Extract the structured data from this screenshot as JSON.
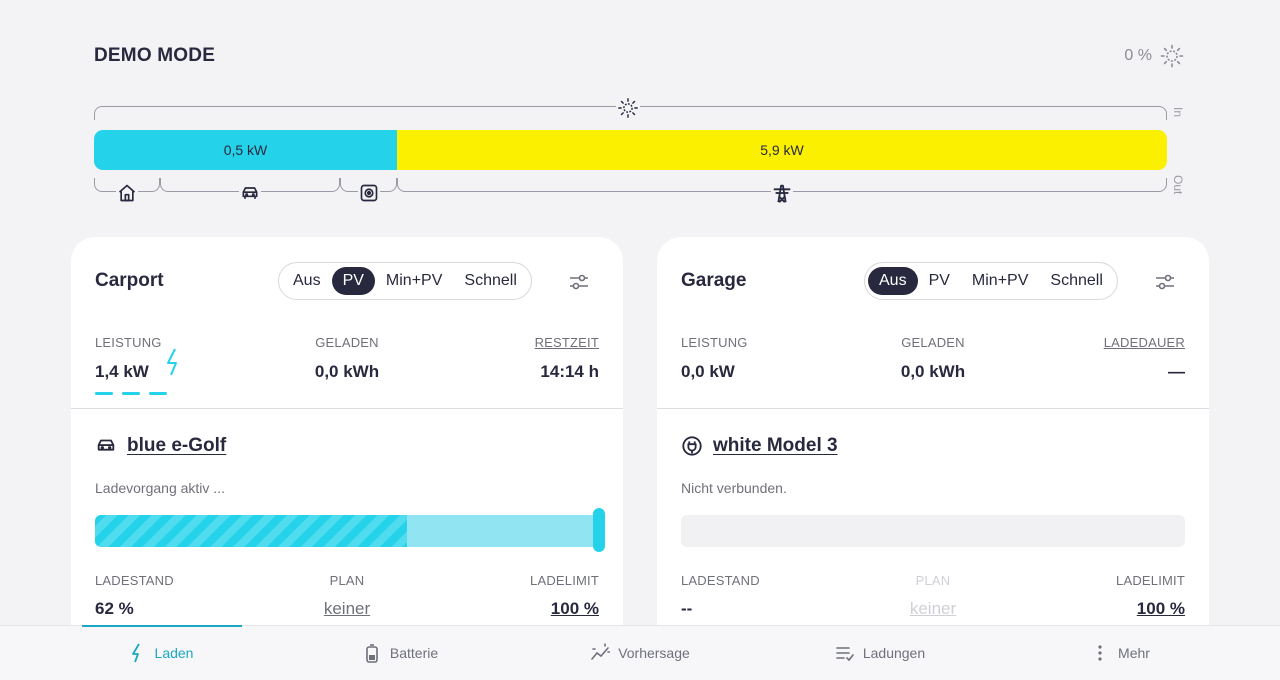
{
  "header": {
    "title": "DEMO MODE",
    "battery_percent": "0 %",
    "icon": "sun-outline-icon"
  },
  "energy_flow": {
    "in_label": "In",
    "out_label": "Out",
    "home_power": "0,5 kW",
    "grid_export": "5,9 kW",
    "colors": {
      "home": "#24d3ea",
      "grid": "#faf000"
    }
  },
  "loadpoints": [
    {
      "name": "Carport",
      "modes": [
        "Aus",
        "PV",
        "Min+PV",
        "Schnell"
      ],
      "active_mode": "PV",
      "stats": [
        {
          "label": "LEISTUNG",
          "value": "1,4 kW"
        },
        {
          "label": "GELADEN",
          "value": "0,0 kWh"
        },
        {
          "label": "RESTZEIT",
          "value": "14:14 h"
        }
      ],
      "vehicle": {
        "name": "blue e-Golf",
        "icon": "car-icon",
        "status": "Ladevorgang aktiv ..."
      },
      "soc_percent": 62,
      "limit_percent": 100,
      "bottom_stats": [
        {
          "label": "LADESTAND",
          "value": "62 %"
        },
        {
          "label": "PLAN",
          "value": "keiner"
        },
        {
          "label": "LADELIMIT",
          "value": "100 %"
        }
      ]
    },
    {
      "name": "Garage",
      "modes": [
        "Aus",
        "PV",
        "Min+PV",
        "Schnell"
      ],
      "active_mode": "Aus",
      "stats": [
        {
          "label": "LEISTUNG",
          "value": "0,0 kW"
        },
        {
          "label": "GELADEN",
          "value": "0,0 kWh"
        },
        {
          "label": "LADEDAUER",
          "value": "—"
        }
      ],
      "vehicle": {
        "name": "white Model 3",
        "icon": "plug-icon",
        "status": "Nicht verbunden."
      },
      "soc_percent": 0,
      "bottom_stats": [
        {
          "label": "LADESTAND",
          "value": "--"
        },
        {
          "label": "PLAN",
          "value": "keiner"
        },
        {
          "label": "LADELIMIT",
          "value": "100 %"
        }
      ]
    }
  ],
  "nav": [
    {
      "label": "Laden",
      "icon": "bolt-icon",
      "active": true
    },
    {
      "label": "Batterie",
      "icon": "battery-icon"
    },
    {
      "label": "Vorhersage",
      "icon": "forecast-icon"
    },
    {
      "label": "Ladungen",
      "icon": "list-icon"
    },
    {
      "label": "Mehr",
      "icon": "more-vertical-icon"
    }
  ]
}
